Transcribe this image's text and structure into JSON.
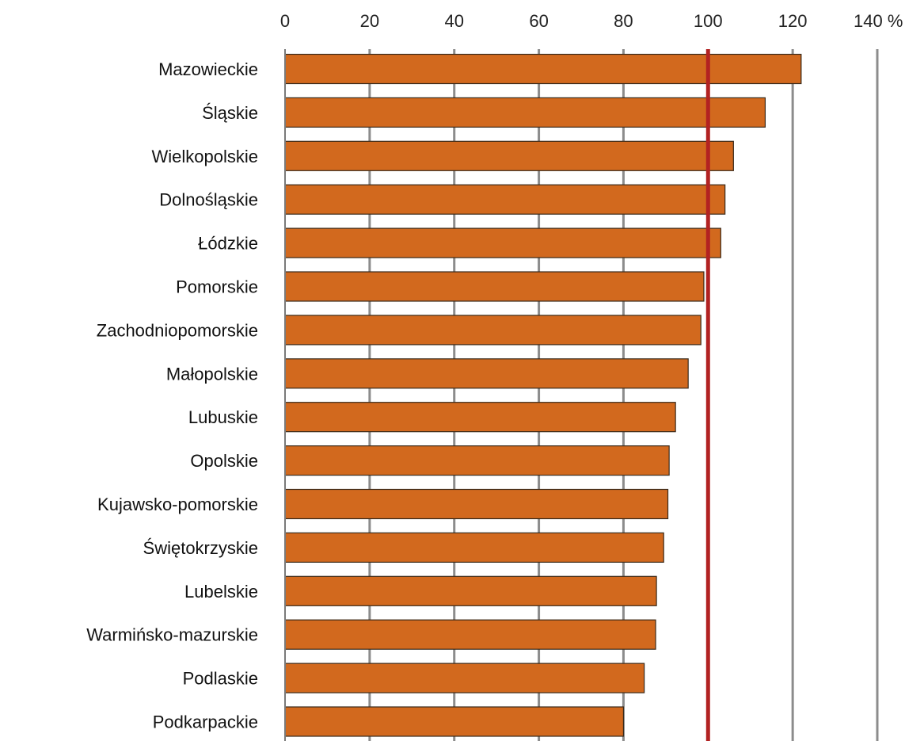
{
  "chart_data": {
    "type": "bar",
    "orientation": "horizontal",
    "categories": [
      "Mazowieckie",
      "Śląskie",
      "Wielkopolskie",
      "Dolnośląskie",
      "Łódzkie",
      "Pomorskie",
      "Zachodniopomorskie",
      "Małopolskie",
      "Lubuskie",
      "Opolskie",
      "Kujawsko-pomorskie",
      "Świętokrzyskie",
      "Lubelskie",
      "Warmińsko-mazurskie",
      "Podlaskie",
      "Podkarpackie"
    ],
    "values": [
      122,
      113.5,
      106,
      104,
      103,
      99,
      98.3,
      95.3,
      92.3,
      90.8,
      90.5,
      89.5,
      87.8,
      87.6,
      84.9,
      80
    ],
    "xlim": [
      0,
      140
    ],
    "x_ticks": [
      "0",
      "20",
      "40",
      "60",
      "80",
      "100",
      "120",
      "140 %"
    ],
    "reference_line": {
      "value": 100,
      "color": "#b22222"
    },
    "grid": "vertical",
    "legend": "none",
    "colors": {
      "bar_fill": "#d2691e",
      "bar_stroke": "#3a2a1a",
      "gridline": "#8c8c8c",
      "axis": "#7a7a7a"
    }
  }
}
